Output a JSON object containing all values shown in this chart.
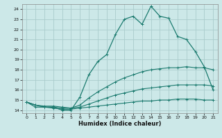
{
  "xlabel": "Humidex (Indice chaleur)",
  "bg_color": "#cce8e8",
  "grid_color": "#aacccc",
  "line_color": "#1a7a6e",
  "xlim": [
    -0.5,
    21.5
  ],
  "ylim": [
    13.7,
    24.5
  ],
  "xticks": [
    0,
    1,
    2,
    3,
    4,
    5,
    6,
    7,
    8,
    9,
    10,
    11,
    12,
    13,
    14,
    15,
    16,
    17,
    18,
    19,
    20,
    21
  ],
  "yticks": [
    14,
    15,
    16,
    17,
    18,
    19,
    20,
    21,
    22,
    23,
    24
  ],
  "curve1_x": [
    0,
    1,
    2,
    3,
    4,
    5,
    6,
    7,
    8,
    9,
    10,
    11,
    12,
    13,
    14,
    15,
    16,
    17,
    18,
    19,
    20,
    21
  ],
  "curve1_y": [
    14.8,
    14.3,
    14.3,
    14.3,
    14.0,
    14.0,
    15.3,
    17.5,
    18.8,
    19.5,
    21.5,
    23.0,
    23.3,
    22.5,
    24.3,
    23.3,
    23.1,
    21.3,
    21.0,
    19.8,
    18.3,
    16.0
  ],
  "curve2_x": [
    0,
    1,
    2,
    3,
    4,
    5,
    6,
    7,
    8,
    9,
    10,
    11,
    12,
    13,
    14,
    15,
    16,
    17,
    18,
    19,
    20,
    21
  ],
  "curve2_y": [
    14.8,
    14.5,
    14.4,
    14.4,
    14.3,
    14.2,
    14.5,
    15.2,
    15.8,
    16.3,
    16.8,
    17.2,
    17.5,
    17.8,
    18.0,
    18.1,
    18.2,
    18.2,
    18.3,
    18.2,
    18.2,
    18.0
  ],
  "curve3_x": [
    0,
    1,
    2,
    3,
    4,
    5,
    6,
    7,
    8,
    9,
    10,
    11,
    12,
    13,
    14,
    15,
    16,
    17,
    18,
    19,
    20,
    21
  ],
  "curve3_y": [
    14.8,
    14.5,
    14.3,
    14.3,
    14.2,
    14.2,
    14.3,
    14.6,
    14.9,
    15.2,
    15.5,
    15.7,
    15.9,
    16.1,
    16.2,
    16.3,
    16.4,
    16.5,
    16.5,
    16.5,
    16.5,
    16.4
  ],
  "curve4_x": [
    0,
    1,
    2,
    3,
    4,
    5,
    6,
    7,
    8,
    9,
    10,
    11,
    12,
    13,
    14,
    15,
    16,
    17,
    18,
    19,
    20,
    21
  ],
  "curve4_y": [
    14.8,
    14.5,
    14.3,
    14.2,
    14.1,
    14.1,
    14.2,
    14.3,
    14.4,
    14.5,
    14.6,
    14.7,
    14.8,
    14.9,
    14.9,
    15.0,
    15.0,
    15.1,
    15.1,
    15.1,
    15.0,
    15.0
  ]
}
